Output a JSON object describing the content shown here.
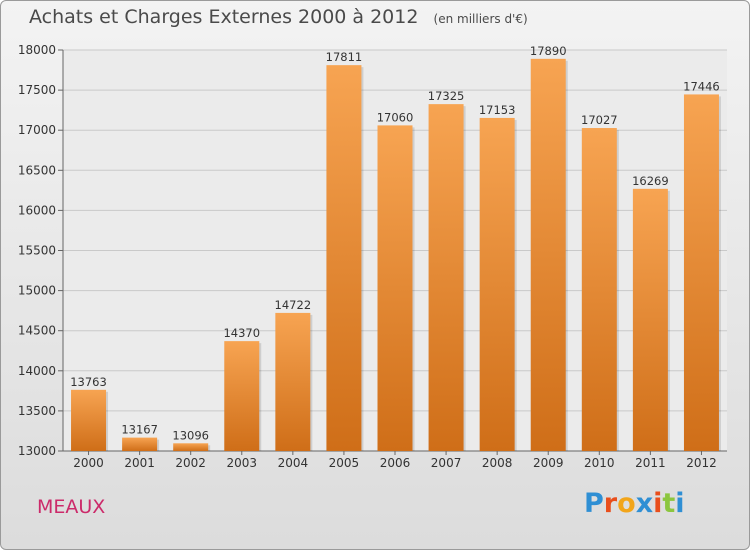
{
  "header": {
    "title": "Achats et Charges Externes 2000 à 2012",
    "subtitle": "(en milliers d'€)"
  },
  "commune": "MEAUX",
  "logo": {
    "text": "Proxiti",
    "letters": [
      "P",
      "r",
      "o",
      "x",
      "i",
      "t",
      "i"
    ],
    "colors": [
      "#2f8fd4",
      "#e94e1b",
      "#f2a51a",
      "#2f8fd4",
      "#e94e1b",
      "#8cc63f",
      "#2f8fd4"
    ]
  },
  "colors": {
    "bar_light": "#f7a452",
    "bar_dark": "#cf6e18",
    "grid": "#c9c9c9",
    "commune": "#cc2a6a"
  },
  "chart_data": {
    "type": "bar",
    "title": "Achats et Charges Externes 2000 à 2012",
    "subtitle": "(en milliers d'€)",
    "categories": [
      "2000",
      "2001",
      "2002",
      "2003",
      "2004",
      "2005",
      "2006",
      "2007",
      "2008",
      "2009",
      "2010",
      "2011",
      "2012"
    ],
    "values": [
      13763,
      13167,
      13096,
      14370,
      14722,
      17811,
      17060,
      17325,
      17153,
      17890,
      17027,
      16269,
      17446
    ],
    "ylim": [
      13000,
      18000
    ],
    "yticks": [
      13000,
      13500,
      14000,
      14500,
      15000,
      15500,
      16000,
      16500,
      17000,
      17500,
      18000
    ],
    "grid": true,
    "data_labels": true
  }
}
